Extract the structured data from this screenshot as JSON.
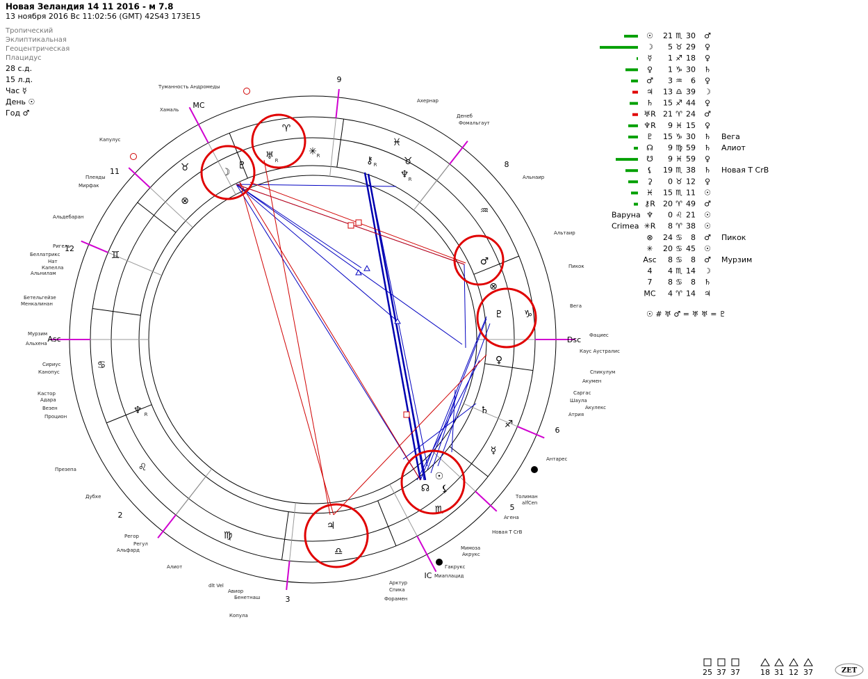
{
  "header": {
    "title": "Новая Зеландия 14 11 2016 - м 7.8",
    "subtitle": "13 ноября 2016  Вс  11:02:56 (GMT) 42S43  173E15",
    "settings": [
      "Тропический",
      "Эклиптикальная",
      "Геоцентрическая",
      "Плацидус"
    ],
    "info": [
      "28 с.д.",
      "15 л.д.",
      "Час ☿",
      "День ☉",
      "Год ♂"
    ]
  },
  "table": {
    "rows": [
      {
        "glyph": "☉",
        "deg": "21",
        "sign": "♏",
        "min": "30",
        "ruler": "♂",
        "strength": 20,
        "color": "#00a000"
      },
      {
        "glyph": "☽",
        "deg": "5",
        "sign": "♉",
        "min": "29",
        "ruler": "♀",
        "strength": 55,
        "color": "#00a000"
      },
      {
        "glyph": "☿",
        "deg": "1",
        "sign": "♐",
        "min": "18",
        "ruler": "♀",
        "strength": 2,
        "color": "#00a000"
      },
      {
        "glyph": "♀",
        "deg": "1",
        "sign": "♑",
        "min": "30",
        "ruler": "♄",
        "strength": 18,
        "color": "#00a000"
      },
      {
        "glyph": "♂",
        "deg": "3",
        "sign": "♒",
        "min": "6",
        "ruler": "♀",
        "strength": 10,
        "color": "#00a000"
      },
      {
        "glyph": "♃",
        "deg": "13",
        "sign": "♎",
        "min": "39",
        "ruler": "☽",
        "strength": 8,
        "color": "#e00000"
      },
      {
        "glyph": "♄",
        "deg": "15",
        "sign": "♐",
        "min": "44",
        "ruler": "♀",
        "strength": 12,
        "color": "#00a000"
      },
      {
        "glyph": "♅R",
        "deg": "21",
        "sign": "♈",
        "min": "24",
        "ruler": "♂",
        "strength": 8,
        "color": "#e00000"
      },
      {
        "glyph": "♆R",
        "deg": "9",
        "sign": "♓",
        "min": "15",
        "ruler": "♀",
        "strength": 14,
        "color": "#00a000"
      },
      {
        "glyph": "♇",
        "deg": "15",
        "sign": "♑",
        "min": "30",
        "ruler": "♄",
        "note": "Вега",
        "strength": 14,
        "color": "#00a000"
      },
      {
        "glyph": "☊",
        "deg": "9",
        "sign": "♍",
        "min": "59",
        "ruler": "♄",
        "note": "Алиот",
        "strength": 6,
        "color": "#00a000"
      },
      {
        "glyph": "☋",
        "deg": "9",
        "sign": "♓",
        "min": "59",
        "ruler": "♀",
        "strength": 32,
        "color": "#00a000"
      },
      {
        "glyph": "⚸",
        "deg": "19",
        "sign": "♏",
        "min": "38",
        "ruler": "♄",
        "note": "Новая Т CrB",
        "strength": 18,
        "color": "#00a000"
      },
      {
        "glyph": "⚳",
        "deg": "0",
        "sign": "♉",
        "min": "12",
        "ruler": "♀",
        "strength": 14,
        "color": "#00a000"
      },
      {
        "glyph": "♓︎",
        "deg": "15",
        "sign": "♏",
        "min": "11",
        "ruler": "☉",
        "strength": 10,
        "color": "#00a000"
      },
      {
        "glyph": "⚷R",
        "deg": "20",
        "sign": "♈",
        "min": "49",
        "ruler": "♂",
        "strength": 6,
        "color": "#00a000"
      },
      {
        "label": "Варуна",
        "glyph": "♆",
        "deg": "0",
        "sign": "♌",
        "min": "21",
        "ruler": "☉"
      },
      {
        "label": "Crimea",
        "glyph": "✳R",
        "deg": "8",
        "sign": "♈",
        "min": "38",
        "ruler": "☉"
      },
      {
        "glyph": "⊗",
        "deg": "24",
        "sign": "♋",
        "min": "8",
        "ruler": "♂",
        "note": "Пикок"
      },
      {
        "glyph": "✳",
        "deg": "20",
        "sign": "♋",
        "min": "45",
        "ruler": "☉"
      },
      {
        "glyph": "Asc",
        "deg": "8",
        "sign": "♋",
        "min": "8",
        "ruler": "♂",
        "note": "Мурзим"
      },
      {
        "glyph": "4",
        "deg": "4",
        "sign": "♏",
        "min": "14",
        "ruler": "☽"
      },
      {
        "glyph": "7",
        "deg": "8",
        "sign": "♋",
        "min": "8",
        "ruler": "♄"
      },
      {
        "glyph": "MC",
        "deg": "4",
        "sign": "♈",
        "min": "14",
        "ruler": "♃"
      }
    ],
    "formula": "☉ # ♅  ♂ = ♅  ♅ = ♇"
  },
  "wheel": {
    "signs": [
      "♈",
      "♉",
      "♊",
      "♋",
      "♌",
      "♍",
      "♎",
      "♏",
      "♐",
      "♑",
      "♒",
      "♓"
    ],
    "planets": [
      "♅",
      "R",
      "♆",
      "R",
      "⚷",
      "R",
      "☽",
      "♇",
      "♂",
      "♇",
      "♀",
      "♄",
      "☿",
      "☉",
      "☊",
      "⚸",
      "♃",
      "✳",
      "R",
      "♆",
      "R",
      "⚳",
      "♉",
      "⊗"
    ],
    "houses": [
      "Asc",
      "12",
      "11",
      "MC",
      "9",
      "8",
      "Dsc",
      "6",
      "5",
      "IC",
      "3",
      "2"
    ],
    "stars": [
      "Туманность Андромеды",
      "Ахернар",
      "Денеб",
      "Фомальгаут",
      "Хамаль",
      "Капулус",
      "Плеяды",
      "Мирфак",
      "Альнаир",
      "Альдебаран",
      "Альтаир",
      "Ригель",
      "Беллатрикс",
      "Нат",
      "Капелла",
      "Альнилам",
      "Пикок",
      "Бетельгейзе",
      "Менкалинан",
      "Вега",
      "Фациес",
      "Мурзим",
      "Альхена",
      "Каус Аустралис",
      "Спикулум",
      "Сириус",
      "Канопус",
      "Акумен",
      "Саргас",
      "Шаула",
      "Акулекс",
      "Кастор",
      "Адара",
      "Везен",
      "Атрия",
      "Процион",
      "Антарес",
      "Презепа",
      "Толиман",
      "alfCen",
      "Дубхе",
      "Агена",
      "Новая Т CrB",
      "Регор",
      "Регул",
      "Альфард",
      "Мимоза",
      "Акрукс",
      "Алиот",
      "Гакрукс",
      "Миаплацид",
      "dlt Vel",
      "Авиор",
      "Арктур",
      "Спика",
      "Бенетнаш",
      "Форамен",
      "Копула"
    ]
  },
  "footer": {
    "groups": [
      [
        "25",
        "37",
        "37"
      ],
      [
        "18",
        "31",
        "12",
        "37"
      ]
    ],
    "logo": "ZET"
  }
}
